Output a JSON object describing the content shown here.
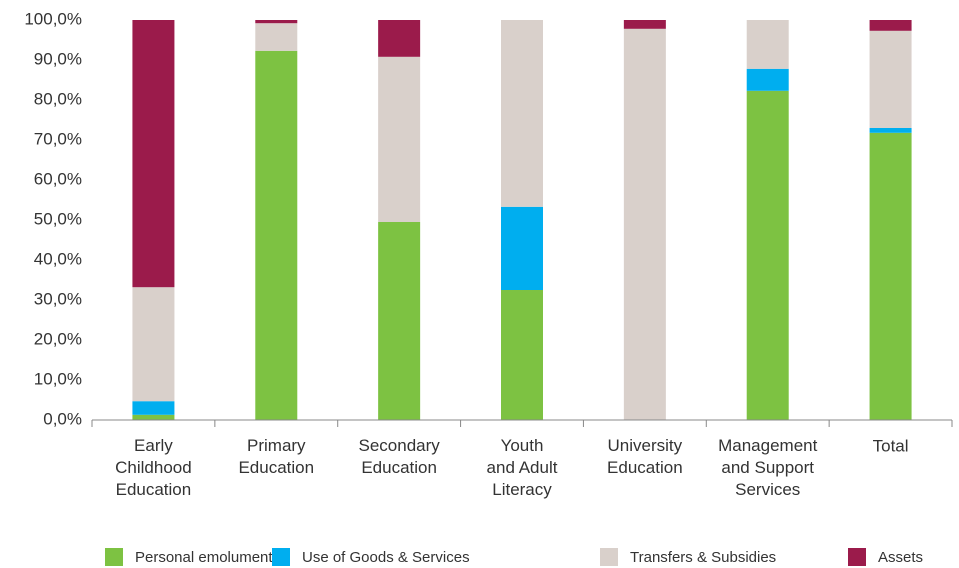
{
  "chart_data": {
    "type": "stacked_bar",
    "categories": [
      "Early\nChildhood\nEducation",
      "Primary\nEducation",
      "Secondary\nEducation",
      "Youth\nand Adult\nLiteracy",
      "University\nEducation",
      "Management\nand Support\nServices",
      "Total"
    ],
    "series": [
      {
        "name": "Personal emoluments",
        "color": "#7dc242",
        "values": [
          1.3,
          92.3,
          49.5,
          32.5,
          0,
          82.3,
          71.8
        ]
      },
      {
        "name": "Use of Goods & Services",
        "color": "#00aeef",
        "values": [
          3.4,
          0,
          0,
          20.8,
          0,
          5.5,
          1.2
        ]
      },
      {
        "name": "Transfers & Subsidies",
        "color": "#d9d0cb",
        "values": [
          28.5,
          6.9,
          41.3,
          46.7,
          97.8,
          12.2,
          24.3
        ]
      },
      {
        "name": "Assets",
        "color": "#9b1b4b",
        "values": [
          66.8,
          0.8,
          9.2,
          0,
          2.2,
          0,
          2.7
        ]
      }
    ],
    "ylim": [
      0,
      100
    ],
    "yticks": [
      {
        "value": 0,
        "label": "0,0%"
      },
      {
        "value": 10,
        "label": "10,0%"
      },
      {
        "value": 20,
        "label": "20,0%"
      },
      {
        "value": 30,
        "label": "30,0%"
      },
      {
        "value": 40,
        "label": "40,0%"
      },
      {
        "value": 50,
        "label": "50,0%"
      },
      {
        "value": 60,
        "label": "60,0%"
      },
      {
        "value": 70,
        "label": "70,0%"
      },
      {
        "value": 80,
        "label": "80,0%"
      },
      {
        "value": 90,
        "label": "90,0%"
      },
      {
        "value": 100,
        "label": "100,0%"
      }
    ],
    "grid": false,
    "legend": "bottom"
  }
}
